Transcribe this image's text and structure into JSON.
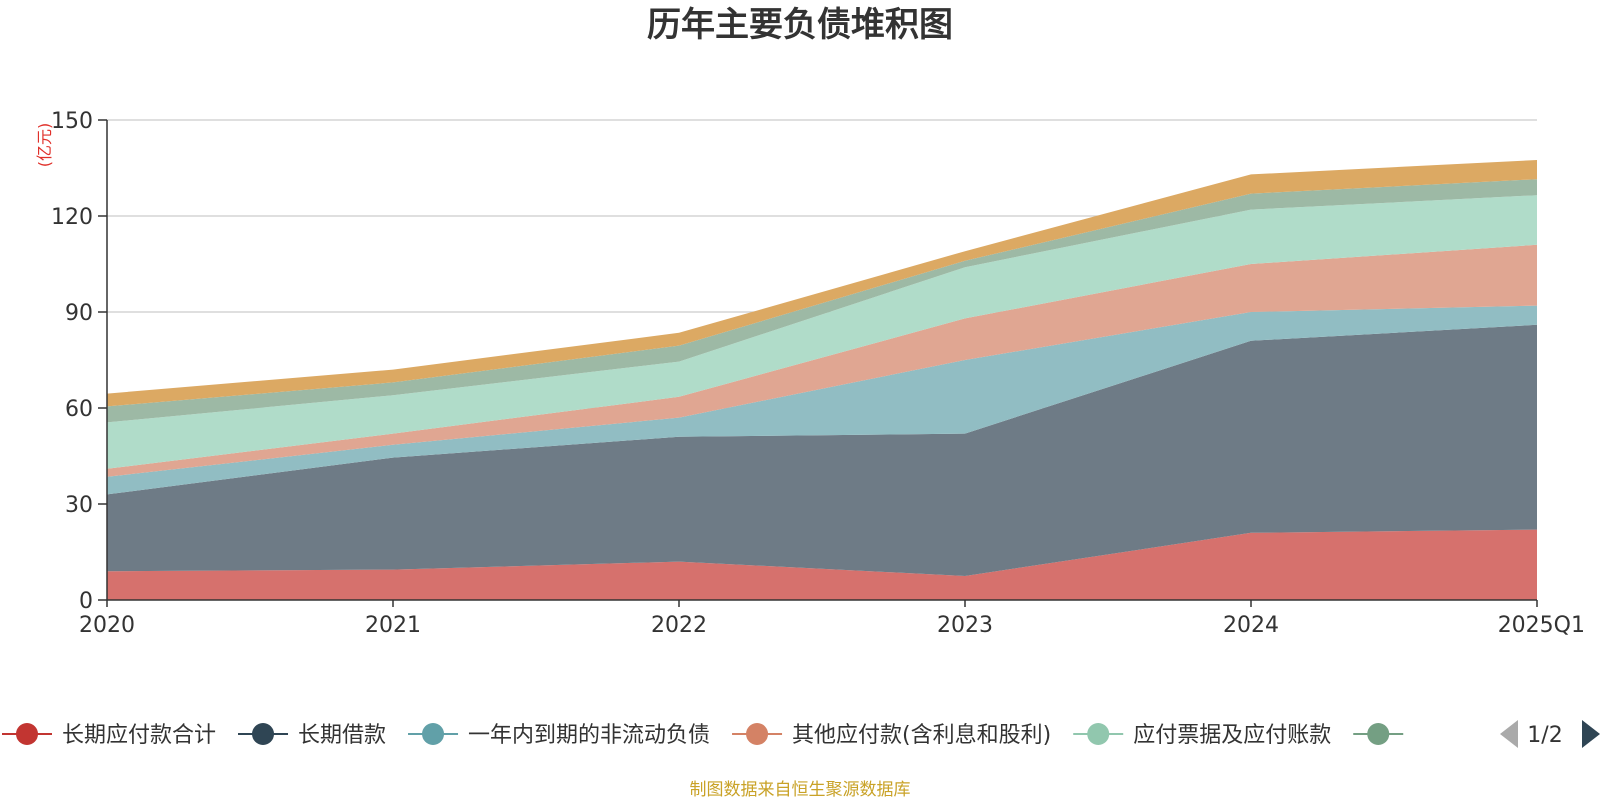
{
  "chart_data": {
    "type": "area",
    "stacked": true,
    "title": "历年主要负债堆积图",
    "unit_label": "(亿元)",
    "categories": [
      "2020",
      "2021",
      "2022",
      "2023",
      "2024",
      "2025Q1"
    ],
    "ylim": [
      0,
      150
    ],
    "yticks": [
      0,
      30,
      60,
      90,
      120,
      150
    ],
    "grid": true,
    "series": [
      {
        "name": "长期应付款合计",
        "color": "#d6716d",
        "legend_color": "#c23531",
        "values": [
          9,
          9.5,
          12,
          7.5,
          21,
          22
        ]
      },
      {
        "name": "长期借款",
        "color": "#6e7b86",
        "legend_color": "#2f4554",
        "values": [
          24,
          35,
          39,
          44.5,
          60,
          64
        ]
      },
      {
        "name": "一年内到期的非流动负债",
        "color": "#91bdc3",
        "legend_color": "#61a0a8",
        "values": [
          5.5,
          4,
          6,
          23,
          9,
          6
        ]
      },
      {
        "name": "其他应付款(含利息和股利)",
        "color": "#e0a692",
        "legend_color": "#d48265",
        "values": [
          2.5,
          3.5,
          6.5,
          13,
          15,
          19
        ]
      },
      {
        "name": "应付票据及应付账款",
        "color": "#b0dcc9",
        "legend_color": "#91c7ae",
        "values": [
          14.5,
          12,
          11,
          16,
          17,
          15.5
        ]
      },
      {
        "name": "",
        "color": "#9db9a5",
        "legend_color": "#749f83",
        "values": [
          5,
          4,
          5,
          2,
          5,
          5
        ]
      },
      {
        "name": "",
        "color": "#dca963",
        "legend_color": "#ca8622",
        "values": [
          4,
          4,
          4,
          3,
          6,
          6
        ]
      }
    ]
  },
  "legend": {
    "page": "1/2"
  },
  "source_text": "制图数据来自恒生聚源数据库"
}
